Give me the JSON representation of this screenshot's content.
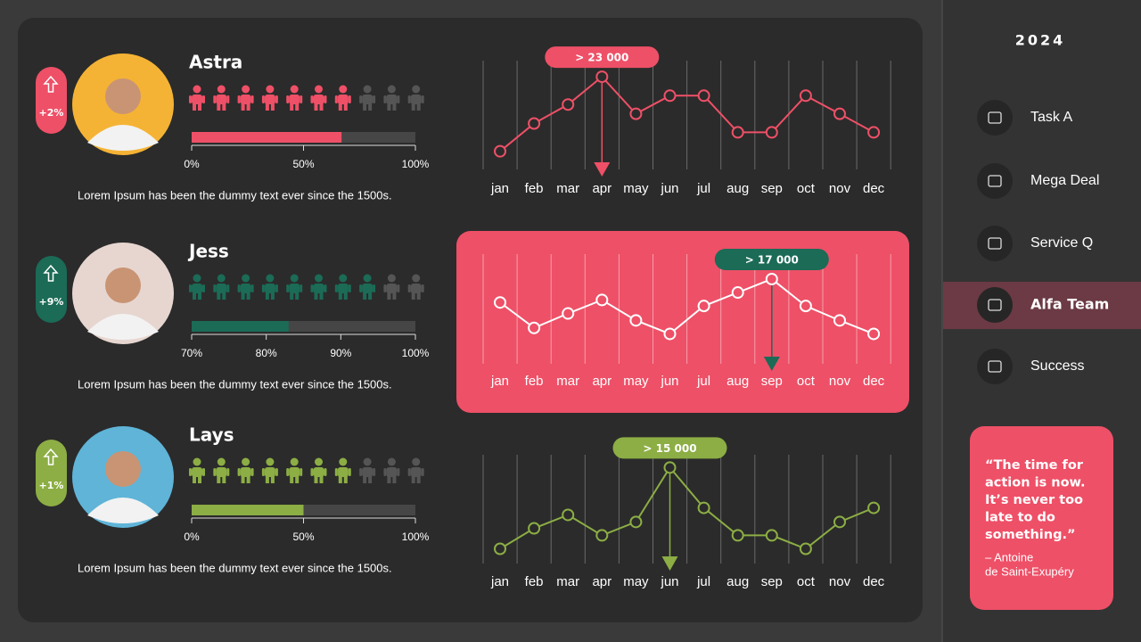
{
  "months": [
    "jan",
    "feb",
    "mar",
    "apr",
    "may",
    "jun",
    "jul",
    "aug",
    "sep",
    "oct",
    "nov",
    "dec"
  ],
  "rows": [
    {
      "name": "Astra",
      "change": "+2%",
      "color": "#ee5067",
      "icons_total": 10,
      "icons_filled": 7,
      "progress": {
        "value": 67,
        "xlim": [
          0,
          100
        ],
        "xticks": [
          {
            "value": 0,
            "label": "0%"
          },
          {
            "value": 50,
            "label": "50%"
          },
          {
            "value": 100,
            "label": "100%"
          }
        ]
      },
      "text": "Lorem Ipsum has been the dummy text ever since the 1500s.",
      "chart": {
        "values": [
          4500,
          11400,
          16100,
          23000,
          13800,
          18300,
          18300,
          9200,
          9200,
          18300,
          13800,
          9200
        ],
        "ylim": [
          0,
          27000
        ],
        "callout": "> 23 000",
        "line_color": "#ee5067"
      }
    },
    {
      "name": "Jess",
      "change": "+9%",
      "color": "#1b6b56",
      "icons_total": 10,
      "icons_filled": 8,
      "progress": {
        "value": 83,
        "xlim": [
          70,
          100
        ],
        "xticks": [
          {
            "value": 70,
            "label": "70%"
          },
          {
            "value": 80,
            "label": "80%"
          },
          {
            "value": 90,
            "label": "90%"
          },
          {
            "value": 100,
            "label": "100%"
          }
        ]
      },
      "text": "Lorem Ipsum has been the dummy text ever since the 1500s.",
      "chart": {
        "values": [
          12300,
          7200,
          10100,
          12800,
          8700,
          6000,
          11600,
          14300,
          17000,
          11600,
          8700,
          6000
        ],
        "ylim": [
          0,
          22000
        ],
        "callout": "> 17 000",
        "line_color": "#ffffff",
        "panel_color": "#ee5067"
      }
    },
    {
      "name": "Lays",
      "change": "+1%",
      "color": "#8cae44",
      "icons_total": 10,
      "icons_filled": 7,
      "progress": {
        "value": 50,
        "xlim": [
          0,
          100
        ],
        "xticks": [
          {
            "value": 0,
            "label": "0%"
          },
          {
            "value": 50,
            "label": "50%"
          },
          {
            "value": 100,
            "label": "100%"
          }
        ]
      },
      "text": "Lorem Ipsum has been the dummy text ever since the 1500s.",
      "chart": {
        "values": [
          2300,
          5500,
          7600,
          4400,
          6500,
          15000,
          8700,
          4400,
          4400,
          2300,
          6500,
          8700
        ],
        "ylim": [
          0,
          17000
        ],
        "callout": "> 15 000",
        "line_color": "#8cae44"
      }
    }
  ],
  "sidebar": {
    "year": "2024",
    "menu": [
      {
        "label": "Task A"
      },
      {
        "label": "Mega Deal"
      },
      {
        "label": "Service Q"
      },
      {
        "label": "Alfa Team",
        "active": true
      },
      {
        "label": "Success"
      }
    ]
  },
  "quote": {
    "lines": [
      "“The time for",
      "action is now.",
      "It’s never too",
      "late to do",
      "something.”"
    ],
    "author": [
      "– Antoine",
      "de Saint-Exupéry"
    ]
  }
}
